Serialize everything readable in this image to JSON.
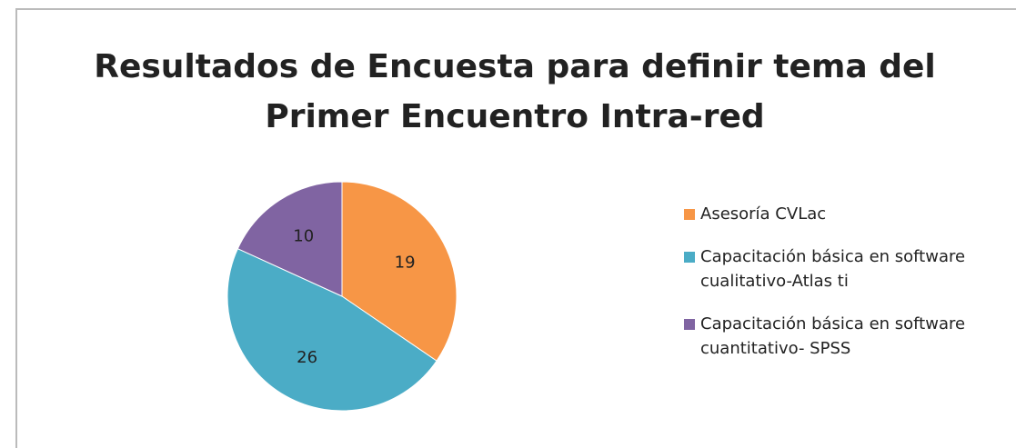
{
  "chart_data": {
    "type": "pie",
    "title": [
      "Resultados de Encuesta para definir tema del",
      "Primer Encuentro Intra-red"
    ],
    "categories": [
      "Asesoría CVLac",
      "Capacitación básica en software cualitativo-Atlas ti",
      "Capacitación básica en software cuantitativo- SPSS"
    ],
    "values": [
      19,
      26,
      10
    ],
    "colors": [
      "#f79646",
      "#4bacc6",
      "#8064a2"
    ],
    "legend": "right"
  }
}
